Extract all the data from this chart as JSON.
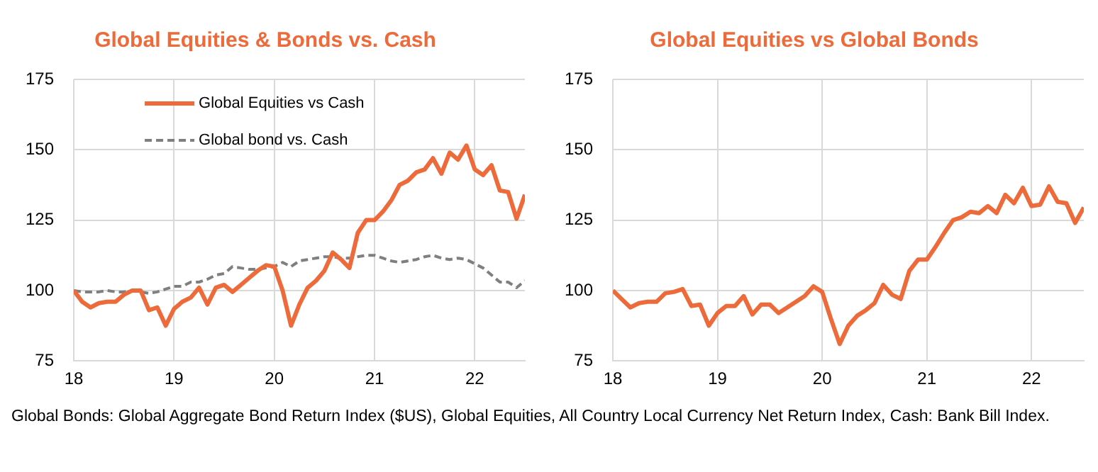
{
  "chart_data": [
    {
      "type": "line",
      "title": "Global Equities & Bonds vs. Cash",
      "x": [
        18,
        18.083,
        18.167,
        18.25,
        18.333,
        18.417,
        18.5,
        18.583,
        18.667,
        18.75,
        18.833,
        18.917,
        19,
        19.083,
        19.167,
        19.25,
        19.333,
        19.417,
        19.5,
        19.583,
        19.667,
        19.75,
        19.833,
        19.917,
        20,
        20.083,
        20.167,
        20.25,
        20.333,
        20.417,
        20.5,
        20.583,
        20.667,
        20.75,
        20.833,
        20.917,
        21,
        21.083,
        21.167,
        21.25,
        21.333,
        21.417,
        21.5,
        21.583,
        21.667,
        21.75,
        21.833,
        21.917,
        22,
        22.083,
        22.167,
        22.25,
        22.333,
        22.417,
        22.5
      ],
      "series": [
        {
          "name": "Global Equities vs Cash",
          "color": "#ed6a3a",
          "line_style": "solid",
          "values": [
            100,
            96,
            94,
            95.5,
            96,
            96,
            98.5,
            100,
            100,
            93,
            94,
            87.5,
            93.5,
            96,
            97.5,
            101,
            95,
            101,
            102,
            99.5,
            102,
            104.5,
            107,
            109,
            108.5,
            100,
            87.5,
            95,
            101,
            103.5,
            107,
            113.5,
            111,
            108,
            120.5,
            125,
            125,
            128,
            132,
            137.5,
            139,
            142,
            143,
            147,
            141.5,
            149,
            146.5,
            151.5,
            143,
            141,
            144.5,
            135.5,
            135,
            125.5,
            134
          ]
        },
        {
          "name": "Global bond vs. Cash",
          "color": "#7f7f7f",
          "line_style": "dashed",
          "values": [
            100,
            99.5,
            99.5,
            99.5,
            100,
            99.5,
            99.5,
            100,
            99.5,
            99,
            99.5,
            100.5,
            101.5,
            101.5,
            103,
            103,
            104,
            105.5,
            106,
            108.5,
            108,
            107.5,
            107.5,
            108,
            108.5,
            110,
            108.5,
            110.5,
            111,
            111.5,
            112,
            112,
            111.5,
            111.5,
            112,
            112.5,
            112.5,
            111.5,
            110.5,
            110,
            110.5,
            111,
            112,
            112.5,
            111.5,
            111,
            111.5,
            111,
            109.5,
            108,
            105.5,
            103,
            103,
            101,
            103.5
          ]
        }
      ],
      "xlim": [
        18,
        22.5
      ],
      "xticks": [
        18,
        19,
        20,
        21,
        22
      ],
      "ylim": [
        75,
        175
      ],
      "yticks": [
        75,
        100,
        125,
        150,
        175
      ],
      "grid": true,
      "legend": "top left",
      "marker": "none",
      "annotations": [
        "Global Bonds: Global Aggregate Bond Return Index ($US), Global Equities, All Country Local Currency Net Return Index, Cash: Bank Bill Index."
      ]
    },
    {
      "type": "line",
      "title": "Global Equities vs Global Bonds",
      "x": [
        18,
        18.083,
        18.167,
        18.25,
        18.333,
        18.417,
        18.5,
        18.583,
        18.667,
        18.75,
        18.833,
        18.917,
        19,
        19.083,
        19.167,
        19.25,
        19.333,
        19.417,
        19.5,
        19.583,
        19.667,
        19.75,
        19.833,
        19.917,
        20,
        20.083,
        20.167,
        20.25,
        20.333,
        20.417,
        20.5,
        20.583,
        20.667,
        20.75,
        20.833,
        20.917,
        21,
        21.083,
        21.167,
        21.25,
        21.333,
        21.417,
        21.5,
        21.583,
        21.667,
        21.75,
        21.833,
        21.917,
        22,
        22.083,
        22.167,
        22.25,
        22.333,
        22.417,
        22.5
      ],
      "series": [
        {
          "color": "#ed6a3a",
          "line_style": "solid",
          "values": [
            100,
            97,
            94,
            95.5,
            96,
            96,
            99,
            99.5,
            100.5,
            94.5,
            95,
            87.5,
            92,
            94.5,
            94.5,
            98,
            91.5,
            95,
            95,
            92,
            94,
            96,
            98,
            101.5,
            99.5,
            90,
            81,
            87.5,
            91,
            93,
            95.5,
            102,
            98.5,
            97,
            107,
            111,
            111,
            115.5,
            120.5,
            125,
            126,
            128,
            127.5,
            130,
            127.5,
            134,
            131,
            136.5,
            130,
            130.5,
            137,
            131.5,
            131,
            124,
            129.5
          ]
        }
      ],
      "xlim": [
        18,
        22.5
      ],
      "xticks": [
        18,
        19,
        20,
        21,
        22
      ],
      "ylim": [
        75,
        175
      ],
      "yticks": [
        75,
        100,
        125,
        150,
        175
      ],
      "grid": true,
      "legend": false,
      "marker": "none"
    }
  ]
}
